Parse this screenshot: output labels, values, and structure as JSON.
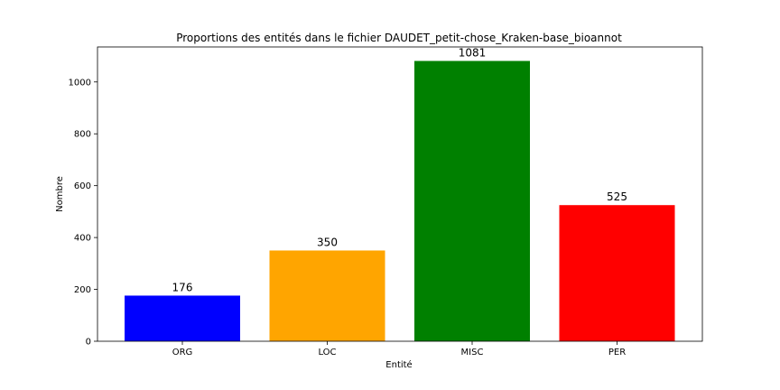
{
  "chart_data": {
    "type": "bar",
    "title": "Proportions des entités dans le fichier DAUDET_petit-chose_Kraken-base_bioannot",
    "xlabel": "Entité",
    "ylabel": "Nombre",
    "categories": [
      "ORG",
      "LOC",
      "MISC",
      "PER"
    ],
    "values": [
      176,
      350,
      1081,
      525
    ],
    "colors": [
      "#0000ff",
      "#ffa500",
      "#008000",
      "#ff0000"
    ],
    "ylim": [
      0,
      1135
    ],
    "yticks": [
      0,
      200,
      400,
      600,
      800,
      1000
    ],
    "grid": false,
    "legend": "none"
  }
}
